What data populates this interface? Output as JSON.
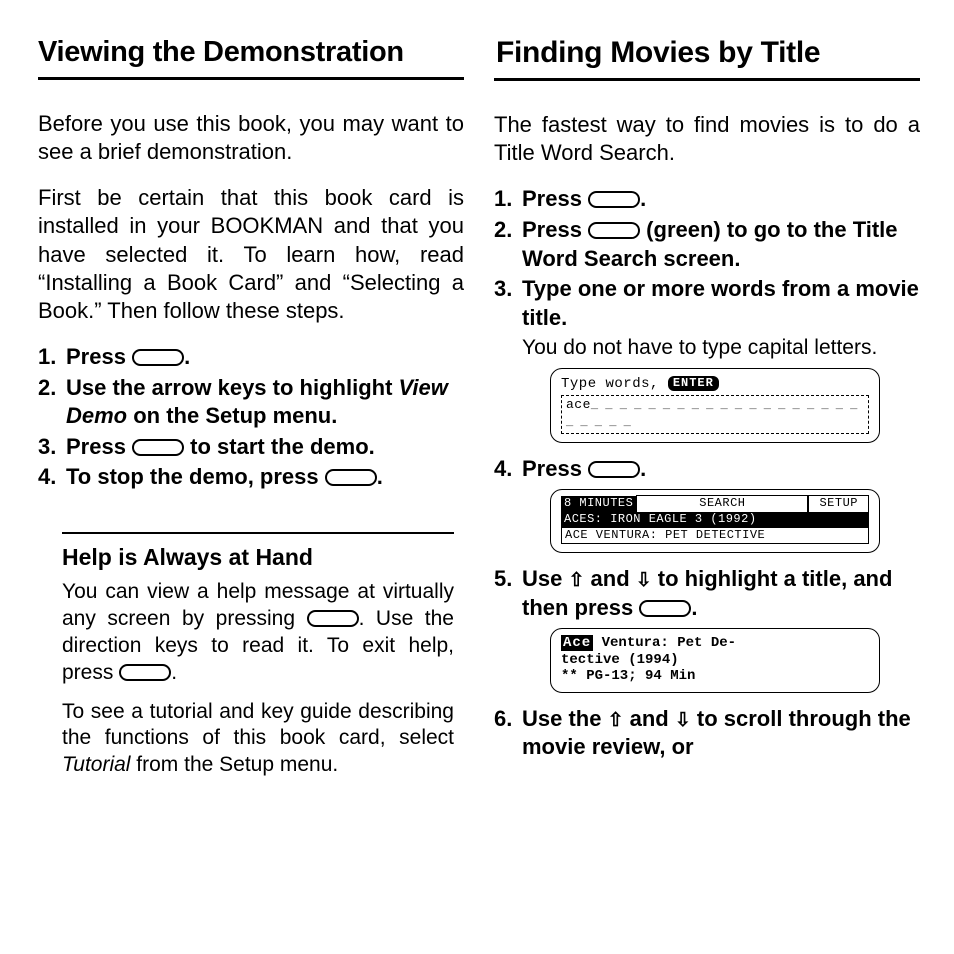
{
  "left": {
    "heading": "Viewing the Demonstration",
    "intro1": "Before you use this book, you may want to see a brief demonstration.",
    "intro2": "First be certain that this book card is installed in your BOOKMAN and that you have selected it. To learn how, read “Installing a Book Card” and “Selecting a Book.”  Then follow these steps.",
    "steps": {
      "s1a": "Press ",
      "s1b": ".",
      "s2a": "Use the arrow keys to highlight ",
      "s2b": "View Demo",
      "s2c": " on the Setup menu.",
      "s3a": "Press ",
      "s3b": " to start the demo.",
      "s4a": "To stop the demo, press ",
      "s4b": "."
    },
    "help": {
      "title": "Help is Always at Hand",
      "p1a": "You can view a help message at virtually any screen by pressing ",
      "p1b": ". Use the direction keys to read it. To exit help, press ",
      "p1c": ".",
      "p2a": "To see a tutorial and key guide describing the functions of this book card, select ",
      "p2b": "Tutorial",
      "p2c": " from the Setup menu."
    }
  },
  "right": {
    "heading": "Finding Movies by Title",
    "intro": "The fastest way to find movies is to do a Title Word Search.",
    "steps": {
      "s1a": "Press ",
      "s1b": ".",
      "s2a": "Press ",
      "s2b": " (green) to go to the Title Word Search screen.",
      "s3": "Type one or more words from a movie title.",
      "s3note": "You do not have to type capital letters.",
      "s4a": "Press ",
      "s4b": ".",
      "s5a": "Use ",
      "s5b": " and ",
      "s5c": " to  highlight a title, and then press ",
      "s5d": ".",
      "s6a": "Use the ",
      "s6b": " and ",
      "s6c": " to scroll through the movie review, or"
    },
    "lcd1": {
      "prompt": "Type words, ",
      "enter": "ENTER",
      "typed": "ace",
      "cursor": "┊"
    },
    "lcd2": {
      "tab1": "8 MINUTES",
      "tab2": "SEARCH",
      "tab3": "SETUP",
      "row2_a": "ACES: IRON EAGLE 3 (1992)",
      "row3": "ACE VENTURA: PET DETECTIVE"
    },
    "lcd3": {
      "tag": "Ace",
      "l1": " Ventura: Pet De-",
      "l2": "tective (1994)",
      "l3": "** PG-13; 94 Min"
    }
  },
  "glyphs": {
    "up": "⇧",
    "down": "⇩"
  }
}
